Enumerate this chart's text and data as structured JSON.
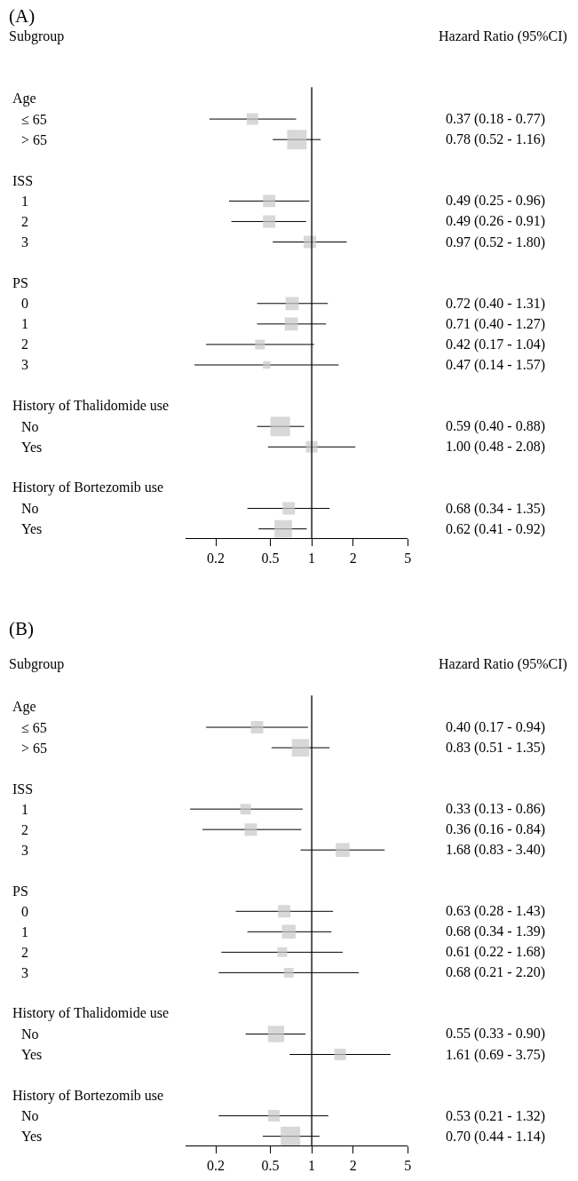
{
  "chart_data": [
    {
      "type": "bubble",
      "orientation": "horizontal",
      "log": "x",
      "marker": "square",
      "color": "#c8c8c8",
      "tick_labels": "x",
      "annotations": [
        "(A)",
        "Subgroup",
        "Hazard Ratio (95%CI)"
      ],
      "categories": [
        "Age",
        "≤ 65",
        "> 65",
        null,
        "ISS",
        "1",
        "2",
        "3",
        null,
        "PS",
        "0",
        "1",
        "2",
        "3",
        null,
        "History of Thalidomide use",
        "No",
        "Yes",
        null,
        "History of Bortezomib use",
        "No",
        "Yes"
      ],
      "values": [
        null,
        0.37,
        0.78,
        null,
        null,
        0.49,
        0.49,
        0.97,
        null,
        null,
        0.72,
        0.71,
        0.42,
        0.47,
        null,
        null,
        0.59,
        1.0,
        null,
        null,
        0.68,
        0.62
      ],
      "errors": [
        null,
        [
          0.18,
          0.77
        ],
        [
          0.52,
          1.16
        ],
        null,
        null,
        [
          0.25,
          0.96
        ],
        [
          0.26,
          0.91
        ],
        [
          0.52,
          1.8
        ],
        null,
        null,
        [
          0.4,
          1.31
        ],
        [
          0.4,
          1.27
        ],
        [
          0.17,
          1.04
        ],
        [
          0.14,
          1.57
        ],
        null,
        null,
        [
          0.4,
          0.88
        ],
        [
          0.48,
          2.08
        ],
        null,
        null,
        [
          0.34,
          1.35
        ],
        [
          0.41,
          0.92
        ]
      ],
      "sizes": [
        null,
        0.35,
        1,
        null,
        null,
        0.4,
        0.4,
        0.4,
        null,
        null,
        0.45,
        0.45,
        0.25,
        0.15,
        null,
        null,
        1,
        0.35,
        null,
        null,
        0.4,
        0.8
      ],
      "value_labels": [
        null,
        "0.37 (0.18 - 0.77)",
        "0.78 (0.52 - 1.16)",
        null,
        null,
        "0.49 (0.25 - 0.96)",
        "0.49 (0.26 - 0.91)",
        "0.97 (0.52 - 1.80)",
        null,
        null,
        "0.72 (0.40 - 1.31)",
        "0.71 (0.40 - 1.27)",
        "0.42 (0.17 - 1.04)",
        "0.47 (0.14 - 1.57)",
        null,
        null,
        "0.59 (0.40 - 0.88)",
        "1.00 (0.48 - 2.08)",
        null,
        null,
        "0.68 (0.34 - 1.35)",
        "0.62 (0.41 - 0.92)"
      ],
      "xlim": [
        0.12,
        5
      ],
      "xticks": [
        0.2,
        0.5,
        1,
        2,
        5
      ],
      "ref_lines": [
        {
          "axis": "x",
          "value": 1,
          "color": "#000000"
        }
      ]
    },
    {
      "type": "bubble",
      "orientation": "horizontal",
      "log": "x",
      "marker": "square",
      "color": "#c8c8c8",
      "tick_labels": "x",
      "annotations": [
        "(B)",
        "Subgroup",
        "Hazard Ratio (95%CI)"
      ],
      "categories": [
        "Age",
        "≤ 65",
        "> 65",
        null,
        "ISS",
        "1",
        "2",
        "3",
        null,
        "PS",
        "0",
        "1",
        "2",
        "3",
        null,
        "History of Thalidomide use",
        "No",
        "Yes",
        null,
        "History of Bortezomib use",
        "No",
        "Yes"
      ],
      "values": [
        null,
        0.4,
        0.83,
        null,
        null,
        0.33,
        0.36,
        1.68,
        null,
        null,
        0.63,
        0.68,
        0.61,
        0.68,
        null,
        null,
        0.55,
        1.61,
        null,
        null,
        0.53,
        0.7
      ],
      "errors": [
        null,
        [
          0.17,
          0.94
        ],
        [
          0.51,
          1.35
        ],
        null,
        null,
        [
          0.13,
          0.86
        ],
        [
          0.16,
          0.84
        ],
        [
          0.83,
          3.4
        ],
        null,
        null,
        [
          0.28,
          1.43
        ],
        [
          0.34,
          1.39
        ],
        [
          0.22,
          1.68
        ],
        [
          0.21,
          2.2
        ],
        null,
        null,
        [
          0.33,
          0.9
        ],
        [
          0.69,
          3.75
        ],
        null,
        null,
        [
          0.21,
          1.32
        ],
        [
          0.44,
          1.14
        ]
      ],
      "sizes": [
        null,
        0.4,
        0.8,
        null,
        null,
        0.3,
        0.4,
        0.5,
        null,
        null,
        0.4,
        0.5,
        0.25,
        0.25,
        null,
        null,
        0.7,
        0.35,
        null,
        null,
        0.35,
        1
      ],
      "value_labels": [
        null,
        "0.40 (0.17 - 0.94)",
        "0.83 (0.51 - 1.35)",
        null,
        null,
        "0.33 (0.13 - 0.86)",
        "0.36 (0.16 - 0.84)",
        "1.68 (0.83 - 3.40)",
        null,
        null,
        "0.63 (0.28 - 1.43)",
        "0.68 (0.34 - 1.39)",
        "0.61 (0.22 - 1.68)",
        "0.68 (0.21 - 2.20)",
        null,
        null,
        "0.55 (0.33 - 0.90)",
        "1.61 (0.69 - 3.75)",
        null,
        null,
        "0.53 (0.21 - 1.32)",
        "0.70 (0.44 - 1.14)"
      ],
      "xlim": [
        0.12,
        5
      ],
      "xticks": [
        0.2,
        0.5,
        1,
        2,
        5
      ],
      "ref_lines": [
        {
          "axis": "x",
          "value": 1,
          "color": "#000000"
        }
      ]
    }
  ]
}
